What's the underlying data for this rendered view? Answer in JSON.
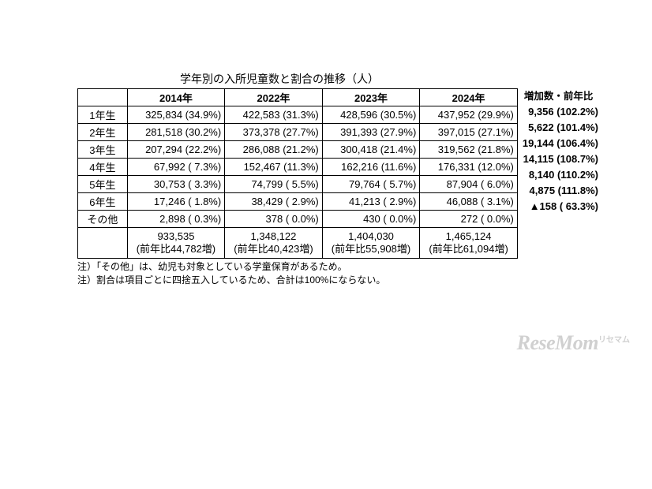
{
  "title": "学年別の入所児童数と割合の推移（人）",
  "columns": [
    "",
    "2014年",
    "2022年",
    "2023年",
    "2024年"
  ],
  "extra_header": "増加数・前年比",
  "rows": [
    {
      "label": "1年生",
      "cells": [
        "325,834 (34.9%)",
        "422,583 (31.3%)",
        "428,596 (30.5%)",
        "437,952 (29.9%)"
      ],
      "extra": "9,356 (102.2%)"
    },
    {
      "label": "2年生",
      "cells": [
        "281,518 (30.2%)",
        "373,378 (27.7%)",
        "391,393 (27.9%)",
        "397,015 (27.1%)"
      ],
      "extra": "5,622 (101.4%)"
    },
    {
      "label": "3年生",
      "cells": [
        "207,294 (22.2%)",
        "286,088 (21.2%)",
        "300,418 (21.4%)",
        "319,562 (21.8%)"
      ],
      "extra": "19,144 (106.4%)"
    },
    {
      "label": "4年生",
      "cells": [
        "67,992 (  7.3%)",
        "152,467 (11.3%)",
        "162,216 (11.6%)",
        "176,331 (12.0%)"
      ],
      "extra": "14,115 (108.7%)"
    },
    {
      "label": "5年生",
      "cells": [
        "30,753 (  3.3%)",
        "74,799 (  5.5%)",
        "79,764 (  5.7%)",
        "87,904 (  6.0%)"
      ],
      "extra": "8,140 (110.2%)"
    },
    {
      "label": "6年生",
      "cells": [
        "17,246 (  1.8%)",
        "38,429 (  2.9%)",
        "41,213 (  2.9%)",
        "46,088 (  3.1%)"
      ],
      "extra": "4,875 (111.8%)"
    },
    {
      "label": "その他",
      "cells": [
        "2,898 (  0.3%)",
        "378 (  0.0%)",
        "430 (  0.0%)",
        "272  (  0.0%)"
      ],
      "extra": "▲158 (  63.3%)"
    }
  ],
  "total": {
    "label": "",
    "cells": [
      "933,535\n(前年比44,782増)",
      "1,348,122\n(前年比40,423増)",
      "1,404,030\n(前年比55,908増)",
      "1,465,124\n(前年比61,094増)"
    ]
  },
  "notes": [
    "注）「その他」は、幼児も対象としている学童保育があるため。",
    "注）割合は項目ごとに四捨五入しているため、合計は100%にならない。"
  ],
  "watermark": {
    "main": "ReseMom",
    "small": "リセマム"
  }
}
